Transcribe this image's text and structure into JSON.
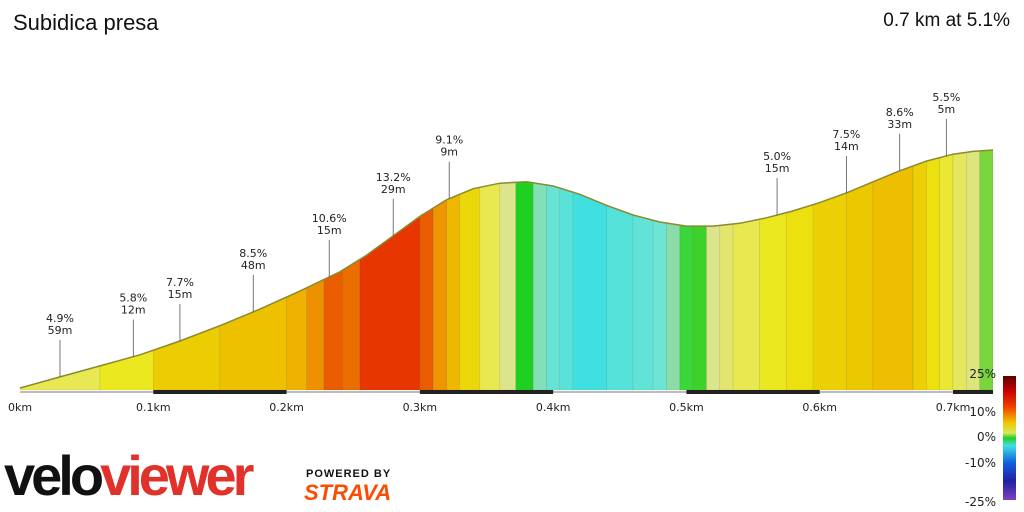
{
  "header": {
    "title": "Subidica presa",
    "summary": "0.7 km at 5.1%"
  },
  "branding": {
    "logo_part1": "velo",
    "logo_part2": "viewer",
    "powered_by": "POWERED BY",
    "strava": "STRAVA"
  },
  "colors": {
    "velo": "#111111",
    "viewer": "#e0312b",
    "strava": "#fc4c02"
  },
  "chart_data": {
    "type": "area",
    "xlabel": "",
    "ylabel": "",
    "x_unit": "km",
    "xlim": [
      0,
      0.73
    ],
    "x_ticks": [
      {
        "value": 0.0,
        "label": "0km"
      },
      {
        "value": 0.1,
        "label": "0.1km"
      },
      {
        "value": 0.2,
        "label": "0.2km"
      },
      {
        "value": 0.3,
        "label": "0.3km"
      },
      {
        "value": 0.4,
        "label": "0.4km"
      },
      {
        "value": 0.5,
        "label": "0.5km"
      },
      {
        "value": 0.6,
        "label": "0.6km"
      },
      {
        "value": 0.7,
        "label": "0.7km"
      }
    ],
    "legend": {
      "placement": "right",
      "ticks": [
        "25%",
        "10%",
        "0%",
        "-10%",
        "-25%"
      ]
    },
    "profile": [
      {
        "x": 0.0,
        "elev": 0.0
      },
      {
        "x": 0.03,
        "elev": 4.0
      },
      {
        "x": 0.06,
        "elev": 8.0
      },
      {
        "x": 0.09,
        "elev": 12.0
      },
      {
        "x": 0.12,
        "elev": 17.0
      },
      {
        "x": 0.15,
        "elev": 22.5
      },
      {
        "x": 0.18,
        "elev": 28.5
      },
      {
        "x": 0.21,
        "elev": 35.0
      },
      {
        "x": 0.24,
        "elev": 42.0
      },
      {
        "x": 0.26,
        "elev": 48.0
      },
      {
        "x": 0.28,
        "elev": 55.0
      },
      {
        "x": 0.3,
        "elev": 62.0
      },
      {
        "x": 0.32,
        "elev": 68.0
      },
      {
        "x": 0.34,
        "elev": 72.0
      },
      {
        "x": 0.36,
        "elev": 74.0
      },
      {
        "x": 0.38,
        "elev": 74.5
      },
      {
        "x": 0.4,
        "elev": 73.0
      },
      {
        "x": 0.42,
        "elev": 70.0
      },
      {
        "x": 0.44,
        "elev": 66.0
      },
      {
        "x": 0.46,
        "elev": 62.5
      },
      {
        "x": 0.48,
        "elev": 60.0
      },
      {
        "x": 0.5,
        "elev": 58.5
      },
      {
        "x": 0.52,
        "elev": 58.5
      },
      {
        "x": 0.54,
        "elev": 59.5
      },
      {
        "x": 0.56,
        "elev": 61.5
      },
      {
        "x": 0.58,
        "elev": 64.0
      },
      {
        "x": 0.6,
        "elev": 67.0
      },
      {
        "x": 0.62,
        "elev": 70.5
      },
      {
        "x": 0.64,
        "elev": 74.5
      },
      {
        "x": 0.66,
        "elev": 78.5
      },
      {
        "x": 0.68,
        "elev": 82.0
      },
      {
        "x": 0.7,
        "elev": 84.5
      },
      {
        "x": 0.715,
        "elev": 85.5
      },
      {
        "x": 0.73,
        "elev": 86.0
      }
    ],
    "segments": [
      {
        "x0": 0.0,
        "x1": 0.06,
        "grade": 4.9
      },
      {
        "x0": 0.06,
        "x1": 0.1,
        "grade": 5.8
      },
      {
        "x0": 0.1,
        "x1": 0.15,
        "grade": 7.7
      },
      {
        "x0": 0.15,
        "x1": 0.2,
        "grade": 8.5
      },
      {
        "x0": 0.2,
        "x1": 0.215,
        "grade": 9.5
      },
      {
        "x0": 0.215,
        "x1": 0.228,
        "grade": 10.6
      },
      {
        "x0": 0.228,
        "x1": 0.242,
        "grade": 12.0
      },
      {
        "x0": 0.242,
        "x1": 0.255,
        "grade": 11.5
      },
      {
        "x0": 0.255,
        "x1": 0.3,
        "grade": 13.2
      },
      {
        "x0": 0.3,
        "x1": 0.31,
        "grade": 12.0
      },
      {
        "x0": 0.31,
        "x1": 0.32,
        "grade": 10.5
      },
      {
        "x0": 0.32,
        "x1": 0.33,
        "grade": 9.1
      },
      {
        "x0": 0.33,
        "x1": 0.345,
        "grade": 7.0
      },
      {
        "x0": 0.345,
        "x1": 0.36,
        "grade": 5.0
      },
      {
        "x0": 0.36,
        "x1": 0.372,
        "grade": 3.0
      },
      {
        "x0": 0.372,
        "x1": 0.385,
        "grade": 1.0
      },
      {
        "x0": 0.385,
        "x1": 0.395,
        "grade": -1.5
      },
      {
        "x0": 0.395,
        "x1": 0.405,
        "grade": -3.0
      },
      {
        "x0": 0.405,
        "x1": 0.415,
        "grade": -4.0
      },
      {
        "x0": 0.415,
        "x1": 0.44,
        "grade": -6.0
      },
      {
        "x0": 0.44,
        "x1": 0.46,
        "grade": -4.5
      },
      {
        "x0": 0.46,
        "x1": 0.475,
        "grade": -3.5
      },
      {
        "x0": 0.475,
        "x1": 0.485,
        "grade": -2.5
      },
      {
        "x0": 0.485,
        "x1": 0.495,
        "grade": -1.0
      },
      {
        "x0": 0.495,
        "x1": 0.505,
        "grade": 0.2
      },
      {
        "x0": 0.505,
        "x1": 0.515,
        "grade": 1.5
      },
      {
        "x0": 0.515,
        "x1": 0.525,
        "grade": 3.0
      },
      {
        "x0": 0.525,
        "x1": 0.535,
        "grade": 4.0
      },
      {
        "x0": 0.535,
        "x1": 0.555,
        "grade": 5.0
      },
      {
        "x0": 0.555,
        "x1": 0.575,
        "grade": 5.8
      },
      {
        "x0": 0.575,
        "x1": 0.595,
        "grade": 6.5
      },
      {
        "x0": 0.595,
        "x1": 0.62,
        "grade": 7.5
      },
      {
        "x0": 0.62,
        "x1": 0.64,
        "grade": 8.0
      },
      {
        "x0": 0.64,
        "x1": 0.67,
        "grade": 8.6
      },
      {
        "x0": 0.67,
        "x1": 0.68,
        "grade": 7.5
      },
      {
        "x0": 0.68,
        "x1": 0.69,
        "grade": 6.5
      },
      {
        "x0": 0.69,
        "x1": 0.7,
        "grade": 5.5
      },
      {
        "x0": 0.7,
        "x1": 0.71,
        "grade": 4.5
      },
      {
        "x0": 0.71,
        "x1": 0.72,
        "grade": 3.5
      },
      {
        "x0": 0.72,
        "x1": 0.73,
        "grade": 2.5
      }
    ],
    "annotations": [
      {
        "x": 0.03,
        "grade": "4.9%",
        "length": "59m"
      },
      {
        "x": 0.085,
        "grade": "5.8%",
        "length": "12m"
      },
      {
        "x": 0.12,
        "grade": "7.7%",
        "length": "15m"
      },
      {
        "x": 0.175,
        "grade": "8.5%",
        "length": "48m"
      },
      {
        "x": 0.232,
        "grade": "10.6%",
        "length": "15m"
      },
      {
        "x": 0.28,
        "grade": "13.2%",
        "length": "29m"
      },
      {
        "x": 0.322,
        "grade": "9.1%",
        "length": "9m"
      },
      {
        "x": 0.568,
        "grade": "5.0%",
        "length": "15m"
      },
      {
        "x": 0.62,
        "grade": "7.5%",
        "length": "14m"
      },
      {
        "x": 0.66,
        "grade": "8.6%",
        "length": "33m"
      },
      {
        "x": 0.695,
        "grade": "5.5%",
        "length": "5m"
      }
    ]
  }
}
